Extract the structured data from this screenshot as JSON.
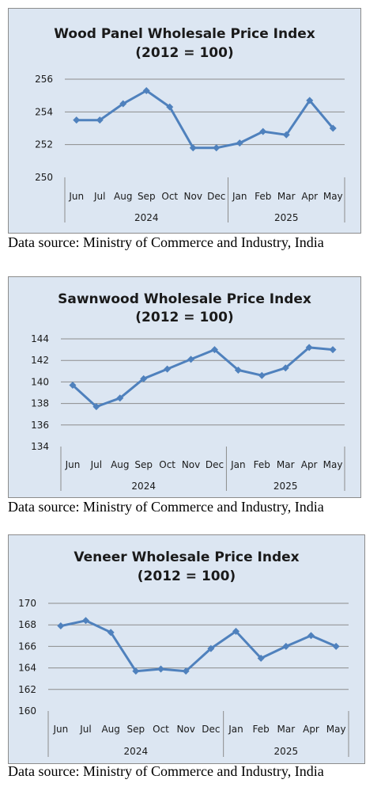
{
  "chart_data": [
    {
      "type": "line",
      "title": "Wood Panel Wholesale Price Index",
      "subtitle": "(2012 = 100)",
      "categories": [
        "Jun",
        "Jul",
        "Aug",
        "Sep",
        "Oct",
        "Nov",
        "Dec",
        "Jan",
        "Feb",
        "Mar",
        "Apr",
        "May"
      ],
      "year_groups": [
        {
          "label": "2024",
          "count": 7
        },
        {
          "label": "2025",
          "count": 5
        }
      ],
      "values": [
        253.5,
        253.5,
        254.5,
        255.3,
        254.3,
        251.8,
        251.8,
        252.1,
        252.8,
        252.6,
        254.7,
        253.0
      ],
      "ylim": [
        250,
        256
      ],
      "yticks": [
        250,
        252,
        254,
        256
      ],
      "grid": true,
      "color": "#4f81bd"
    },
    {
      "type": "line",
      "title": "Sawnwood  Wholesale Price Index",
      "subtitle": "(2012 = 100)",
      "categories": [
        "Jun",
        "Jul",
        "Aug",
        "Sep",
        "Oct",
        "Nov",
        "Dec",
        "Jan",
        "Feb",
        "Mar",
        "Apr",
        "May"
      ],
      "year_groups": [
        {
          "label": "2024",
          "count": 7
        },
        {
          "label": "2025",
          "count": 5
        }
      ],
      "values": [
        139.7,
        137.7,
        138.5,
        140.3,
        141.2,
        142.1,
        143.0,
        141.1,
        140.6,
        141.3,
        143.2,
        143.0
      ],
      "ylim": [
        134,
        144
      ],
      "yticks": [
        134,
        136,
        138,
        140,
        142,
        144
      ],
      "grid": true,
      "color": "#4f81bd"
    },
    {
      "type": "line",
      "title": "Veneer Wholesale Price Index",
      "subtitle": "(2012 = 100)",
      "categories": [
        "Jun",
        "Jul",
        "Aug",
        "Sep",
        "Oct",
        "Nov",
        "Dec",
        "Jan",
        "Feb",
        "Mar",
        "Apr",
        "May"
      ],
      "year_groups": [
        {
          "label": "2024",
          "count": 7
        },
        {
          "label": "2025",
          "count": 5
        }
      ],
      "values": [
        167.9,
        168.4,
        167.3,
        163.7,
        163.9,
        163.7,
        165.8,
        167.4,
        164.9,
        166.0,
        167.0,
        166.0
      ],
      "ylim": [
        160,
        170
      ],
      "yticks": [
        160,
        162,
        164,
        166,
        168,
        170
      ],
      "grid": true,
      "color": "#4f81bd"
    }
  ],
  "source_text": "Data source: Ministry of Commerce and Industry, India"
}
